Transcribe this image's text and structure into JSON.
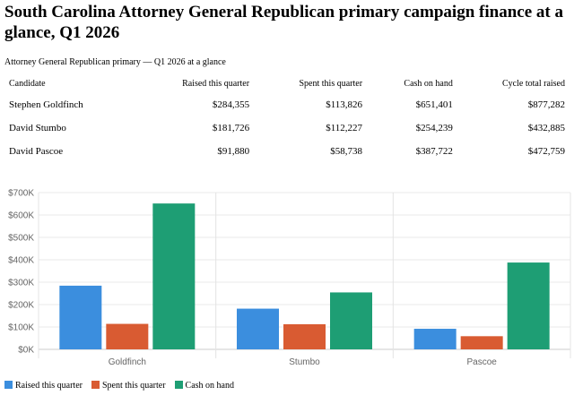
{
  "title": "South Carolina Attorney General Republican primary campaign finance at a glance, Q1 2026",
  "table": {
    "caption": "Attorney General Republican primary — Q1 2026 at a glance",
    "headers": [
      "Candidate",
      "Raised this quarter",
      "Spent this quarter",
      "Cash on hand",
      "Cycle total raised"
    ],
    "rows": [
      [
        "Stephen Goldfinch",
        "$284,355",
        "$113,826",
        "$651,401",
        "$877,282"
      ],
      [
        "David Stumbo",
        "$181,726",
        "$112,227",
        "$254,239",
        "$432,885"
      ],
      [
        "David Pascoe",
        "$91,880",
        "$58,738",
        "$387,722",
        "$472,759"
      ]
    ]
  },
  "chart_data": {
    "type": "bar",
    "categories": [
      "Goldfinch",
      "Stumbo",
      "Pascoe"
    ],
    "series": [
      {
        "name": "Raised this quarter",
        "color": "#3b8ede",
        "values": [
          284355,
          181726,
          91880
        ]
      },
      {
        "name": "Spent this quarter",
        "color": "#d95b32",
        "values": [
          113826,
          112227,
          58738
        ]
      },
      {
        "name": "Cash on hand",
        "color": "#1e9e74",
        "values": [
          651401,
          254239,
          387722
        ]
      }
    ],
    "ylim": [
      0,
      700000
    ],
    "yticks": [
      "$0K",
      "$100K",
      "$200K",
      "$300K",
      "$400K",
      "$500K",
      "$600K",
      "$700K"
    ],
    "grid": true,
    "legend": "bottom-left"
  }
}
